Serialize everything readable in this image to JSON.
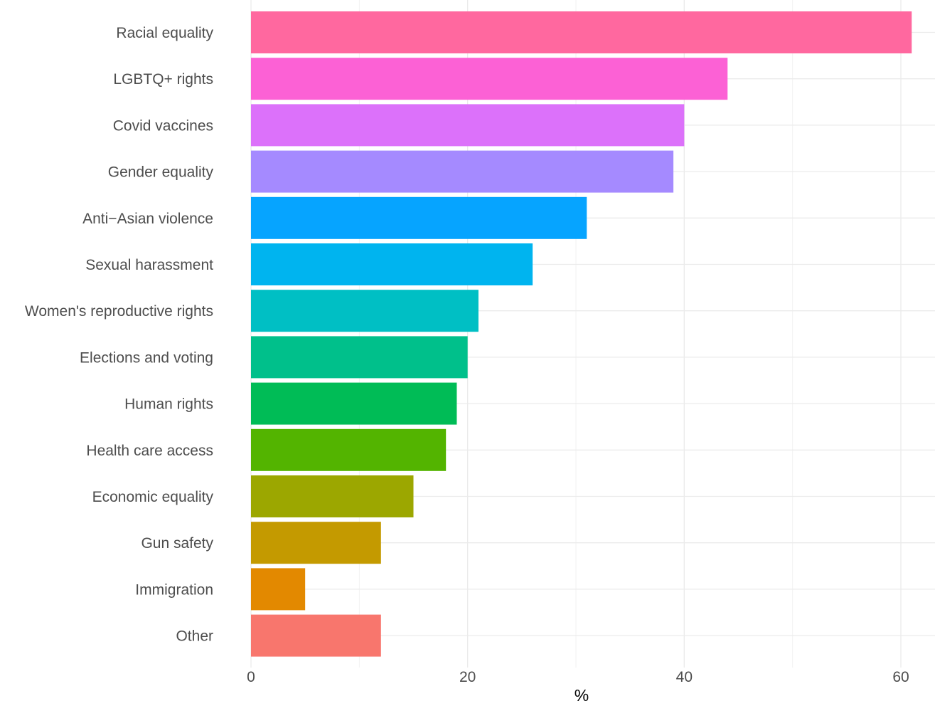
{
  "chart_data": {
    "type": "bar",
    "orientation": "horizontal",
    "title": "",
    "xlabel": "%",
    "ylabel": "",
    "xlim": [
      0,
      63
    ],
    "x_ticks": [
      0,
      20,
      40,
      60
    ],
    "grid": true,
    "legend": "none",
    "categories": [
      "Racial equality",
      "LGBTQ+ rights",
      "Covid vaccines",
      "Gender equality",
      "Anti−Asian violence",
      "Sexual harassment",
      "Women's reproductive rights",
      "Elections and voting",
      "Human rights",
      "Health care access",
      "Economic equality",
      "Gun safety",
      "Immigration",
      "Other"
    ],
    "values": [
      61,
      44,
      40,
      39,
      31,
      26,
      21,
      20,
      19,
      18,
      15,
      12,
      5,
      12
    ],
    "colors": [
      "#FF689F",
      "#FC61D5",
      "#DC71FA",
      "#A58AFF",
      "#06A4FF",
      "#00B4EF",
      "#00BFC4",
      "#00C08B",
      "#00BC56",
      "#53B400",
      "#9CA700",
      "#C49A00",
      "#E38900",
      "#F8766D"
    ]
  }
}
